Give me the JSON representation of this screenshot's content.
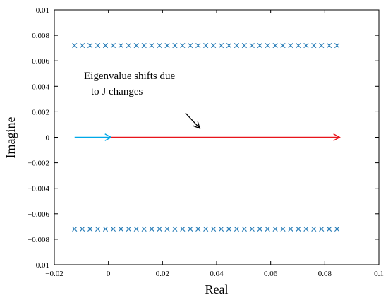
{
  "chart_data": {
    "type": "scatter",
    "title": "",
    "xlabel": "Real",
    "ylabel": "Imagine",
    "xlim": [
      -0.02,
      0.1
    ],
    "ylim": [
      -0.01,
      0.01
    ],
    "grid": false,
    "legend": "none",
    "x_ticks": [
      -0.02,
      0,
      0.02,
      0.04,
      0.06,
      0.08,
      0.1
    ],
    "x_tick_labels": [
      "−0.02",
      "0",
      "0.02",
      "0.04",
      "0.06",
      "0.08",
      "0.1"
    ],
    "y_ticks": [
      -0.01,
      -0.008,
      -0.006,
      -0.004,
      -0.002,
      0,
      0.002,
      0.004,
      0.006,
      0.008,
      0.01
    ],
    "y_tick_labels": [
      "−0.01",
      "−0.008",
      "−0.006",
      "−0.004",
      "−0.002",
      "0",
      "0.002",
      "0.004",
      "0.006",
      "0.008",
      "0.01"
    ],
    "series": [
      {
        "marker": "x",
        "color": "#1f77b4",
        "x_start": -0.0125,
        "x_end": 0.0845,
        "count": 35,
        "y_values": [
          0.0072,
          -0.0072
        ]
      }
    ],
    "arrows": [
      {
        "from": [
          -0.0125,
          0
        ],
        "to": [
          0.001,
          0
        ],
        "color": "#00a8e8"
      },
      {
        "from": [
          0.001,
          0
        ],
        "to": [
          0.0855,
          0
        ],
        "color": "#e8141b"
      }
    ],
    "annotation": {
      "lines": [
        "Eigenvalue shifts due",
        "to J changes"
      ],
      "arrow_from": [
        0.0285,
        0.0019
      ],
      "arrow_to": [
        0.0338,
        0.0007
      ]
    }
  }
}
